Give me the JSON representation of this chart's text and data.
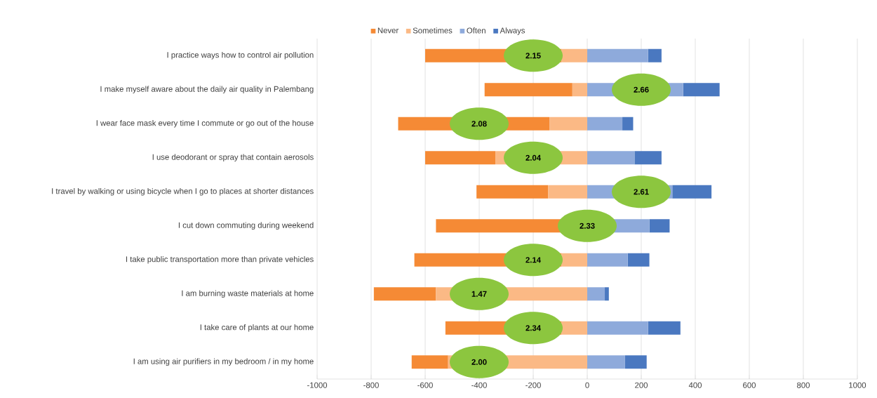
{
  "chart_data": {
    "type": "bar",
    "orientation": "horizontal",
    "stacked": true,
    "categories": [
      "I practice ways how to control air pollution",
      "I make myself aware about the daily air quality in Palembang",
      "I wear face mask every time I commute or go out of the house",
      "I use deodorant or spray that contain aerosols",
      "I travel by walking or using bicycle when I go to places at shorter distances",
      "I cut down commuting during weekend",
      "I take public transportation more than private vehicles",
      "I am burning waste materials at home",
      "I take care of plants at our home",
      "I am using air purifiers in my bedroom / in my home"
    ],
    "series": [
      {
        "name": "Never",
        "color": "#f58a35",
        "values": [
          -505,
          -325,
          -560,
          -260,
          -265,
          -560,
          -545,
          -230,
          -430,
          -135
        ]
      },
      {
        "name": "Sometimes",
        "color": "#fbb985",
        "values": [
          -95,
          -55,
          -140,
          -340,
          -145,
          null,
          -95,
          -560,
          -95,
          -515
        ]
      },
      {
        "name": "Often",
        "color": "#8eaadb",
        "values": [
          225,
          355,
          130,
          175,
          315,
          230,
          150,
          65,
          225,
          140
        ]
      },
      {
        "name": "Always",
        "color": "#4a78c0",
        "values": [
          50,
          135,
          40,
          100,
          145,
          75,
          80,
          15,
          120,
          80
        ]
      }
    ],
    "xlim": [
      -1000,
      1000
    ],
    "xticks": [
      -1000,
      -800,
      -600,
      -400,
      -200,
      0,
      200,
      400,
      600,
      800,
      1000
    ],
    "grid": "x",
    "legend": "top",
    "annotations": [
      "2.15",
      "2.66",
      "2.08",
      "2.04",
      "2.61",
      "2.33",
      "2.14",
      "1.47",
      "2.34",
      "2.00"
    ]
  }
}
